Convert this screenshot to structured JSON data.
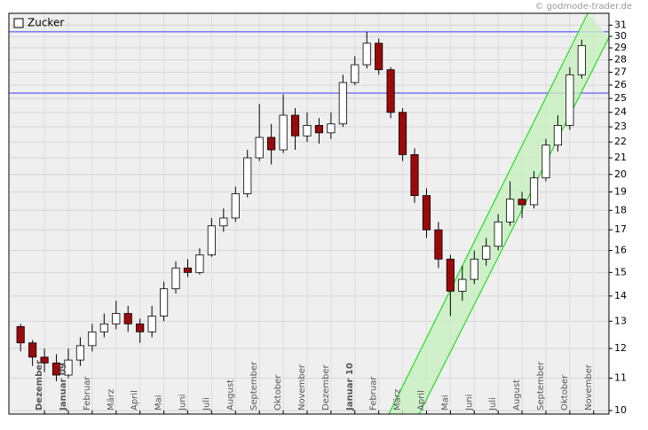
{
  "chart_data": {
    "type": "candlestick",
    "title": "Zucker",
    "watermark": "© godmode-trader.de",
    "log_scale": true,
    "grid": true,
    "ylim": [
      9.9,
      32.1
    ],
    "yticks": [
      10,
      11,
      12,
      13,
      14,
      15,
      16,
      17,
      18,
      19,
      20,
      21,
      22,
      23,
      24,
      25,
      26,
      27,
      28,
      29,
      30,
      31
    ],
    "xlim": [
      -1.49,
      23.64
    ],
    "xticks": [
      {
        "value": 0,
        "label": "Dezember",
        "bold": true
      },
      {
        "value": 1,
        "label": "Januar 09",
        "bold": true
      },
      {
        "value": 2,
        "label": "Februar"
      },
      {
        "value": 3,
        "label": "März"
      },
      {
        "value": 4,
        "label": "April"
      },
      {
        "value": 5,
        "label": "Mai"
      },
      {
        "value": 6,
        "label": "Juni"
      },
      {
        "value": 7,
        "label": "Juli"
      },
      {
        "value": 8,
        "label": "August"
      },
      {
        "value": 9,
        "label": "September"
      },
      {
        "value": 10,
        "label": "Oktober"
      },
      {
        "value": 11,
        "label": "November"
      },
      {
        "value": 12,
        "label": "Dezember"
      },
      {
        "value": 13,
        "label": "Januar 10",
        "bold": true
      },
      {
        "value": 14,
        "label": "Februar"
      },
      {
        "value": 15,
        "label": "März"
      },
      {
        "value": 16,
        "label": "April"
      },
      {
        "value": 17,
        "label": "Mai"
      },
      {
        "value": 18,
        "label": "Juni"
      },
      {
        "value": 19,
        "label": "Juli"
      },
      {
        "value": 20,
        "label": "August"
      },
      {
        "value": 21,
        "label": "September"
      },
      {
        "value": 22,
        "label": "Oktober"
      },
      {
        "value": 23,
        "label": "November"
      }
    ],
    "up_color": "#ffffff",
    "down_color": "#9b0a0a",
    "series": [
      {
        "name": "Zucker",
        "x": [
          -1,
          -0.5,
          0,
          0.5,
          1,
          1.5,
          2,
          2.5,
          3,
          3.5,
          4,
          4.5,
          5,
          5.5,
          6,
          6.5,
          7,
          7.5,
          8,
          8.5,
          9,
          9.5,
          10,
          10.5,
          11,
          11.5,
          12,
          12.5,
          13,
          13.5,
          14,
          14.5,
          15,
          15.5,
          16,
          16.5,
          17,
          17.5,
          18,
          18.5,
          19,
          19.5,
          20,
          20.5,
          21,
          21.5,
          22,
          22.5
        ],
        "open": [
          12.8,
          12.2,
          11.7,
          11.5,
          11.1,
          11.6,
          12.1,
          12.6,
          12.9,
          13.3,
          12.9,
          12.6,
          13.2,
          14.3,
          15.2,
          15.0,
          15.8,
          17.2,
          17.6,
          18.9,
          21.0,
          22.3,
          21.5,
          23.8,
          22.4,
          23.1,
          22.6,
          23.2,
          26.2,
          27.6,
          29.4,
          27.2,
          24.0,
          21.2,
          18.8,
          17.0,
          15.6,
          14.2,
          14.7,
          15.6,
          16.2,
          17.4,
          18.6,
          18.3,
          19.8,
          21.8,
          23.1,
          26.8
        ],
        "high": [
          12.9,
          12.3,
          12.0,
          11.8,
          12.0,
          12.4,
          12.9,
          13.3,
          13.8,
          13.6,
          13.1,
          13.6,
          14.6,
          15.5,
          15.6,
          16.1,
          17.6,
          18.1,
          19.3,
          21.5,
          24.6,
          23.2,
          25.3,
          24.3,
          24.0,
          23.6,
          24.0,
          26.8,
          28.3,
          30.4,
          29.8,
          27.4,
          24.3,
          21.6,
          19.2,
          17.4,
          15.8,
          15.3,
          16.0,
          16.6,
          17.8,
          19.6,
          19.0,
          20.2,
          22.2,
          23.8,
          27.4,
          29.7
        ],
        "low": [
          11.9,
          11.4,
          11.2,
          10.9,
          11.0,
          11.4,
          11.9,
          12.4,
          12.7,
          12.6,
          12.2,
          12.4,
          13.0,
          14.1,
          14.8,
          14.9,
          15.7,
          16.9,
          17.4,
          18.7,
          20.8,
          20.6,
          21.3,
          21.5,
          22.0,
          21.9,
          22.2,
          23.0,
          26.0,
          27.3,
          26.8,
          23.6,
          20.8,
          18.4,
          16.6,
          15.2,
          13.2,
          13.8,
          14.5,
          15.3,
          16.0,
          17.2,
          17.6,
          18.1,
          19.6,
          21.4,
          22.8,
          26.5
        ],
        "close": [
          12.2,
          11.7,
          11.5,
          11.1,
          11.6,
          12.1,
          12.6,
          12.9,
          13.3,
          12.9,
          12.6,
          13.2,
          14.3,
          15.2,
          15.0,
          15.8,
          17.2,
          17.6,
          18.9,
          21.0,
          22.3,
          21.5,
          23.8,
          22.4,
          23.1,
          22.6,
          23.2,
          26.2,
          27.6,
          29.4,
          27.2,
          24.0,
          21.2,
          18.8,
          17.0,
          15.6,
          14.2,
          14.7,
          15.6,
          16.2,
          17.4,
          18.6,
          18.3,
          19.8,
          21.8,
          23.1,
          26.8,
          29.2
        ]
      }
    ],
    "hlines": {
      "color": "#3a3aff",
      "values": [
        30.4,
        25.4
      ]
    },
    "channel": {
      "color": "#22dd22",
      "fill": "#c8f0c0",
      "upper": {
        "x": [
          14.42,
          22.75
        ],
        "y": [
          9.9,
          32.1
        ]
      },
      "lower": {
        "x": [
          15.69,
          23.64
        ],
        "y": [
          9.9,
          29.9
        ]
      }
    }
  }
}
